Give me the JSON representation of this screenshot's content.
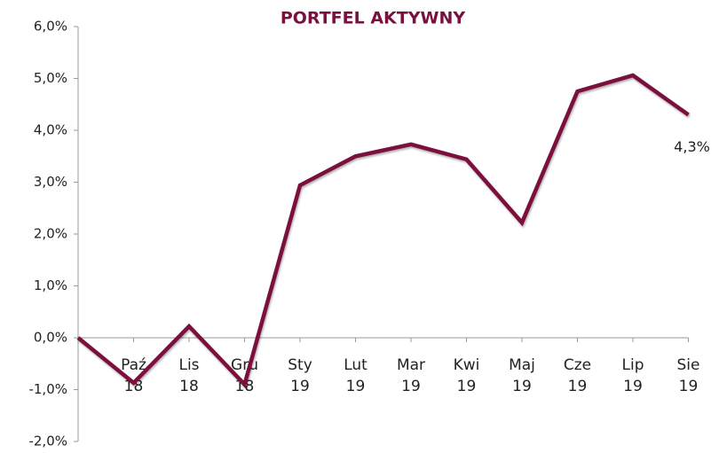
{
  "chart_data": {
    "type": "line",
    "title": "PORTFEL AKTYWNY",
    "categories": [
      null,
      "Paź 18",
      "Lis 18",
      "Gru 18",
      "Sty 19",
      "Lut 19",
      "Mar 19",
      "Kwi 19",
      "Maj 19",
      "Cze 19",
      "Lip 19",
      "Sie 19"
    ],
    "values": [
      0.0,
      -0.87,
      0.22,
      -0.9,
      2.94,
      3.5,
      3.73,
      3.44,
      2.22,
      4.75,
      5.06,
      4.3
    ],
    "value_labels": [
      null,
      null,
      null,
      null,
      null,
      null,
      null,
      null,
      null,
      null,
      null,
      "4,3%"
    ],
    "color": "#7b0f3d",
    "ylim": [
      -2,
      6
    ],
    "yticks": [
      {
        "value": -2,
        "label": "-2,0%"
      },
      {
        "value": -1,
        "label": "-1,0%"
      },
      {
        "value": 0,
        "label": "0,0%"
      },
      {
        "value": 1,
        "label": "1,0%"
      },
      {
        "value": 2,
        "label": "2,0%"
      },
      {
        "value": 3,
        "label": "3,0%"
      },
      {
        "value": 4,
        "label": "4,0%"
      },
      {
        "value": 5,
        "label": "5,0%"
      },
      {
        "value": 6,
        "label": "6,0%"
      }
    ]
  }
}
